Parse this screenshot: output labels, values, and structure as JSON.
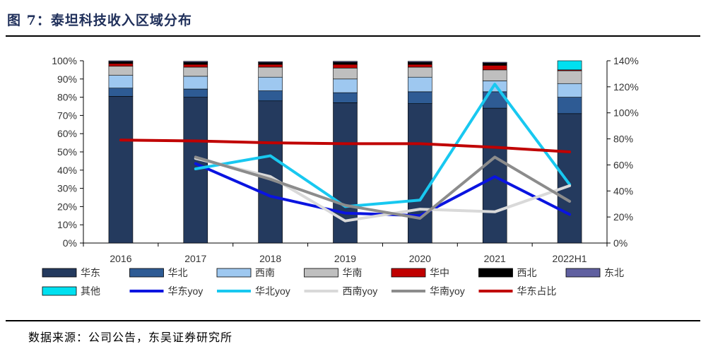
{
  "figure": {
    "title": "图 7：泰坦科技收入区域分布",
    "source": "数据来源：公司公告，东吴证券研究所"
  },
  "chart_data": {
    "type": "bar",
    "stacked": true,
    "categories": [
      "2016",
      "2017",
      "2018",
      "2019",
      "2020",
      "2021",
      "2022H1"
    ],
    "left_axis": {
      "ylim": [
        0,
        100
      ],
      "ticks": [
        "0%",
        "10%",
        "20%",
        "30%",
        "40%",
        "50%",
        "60%",
        "70%",
        "80%",
        "90%",
        "100%"
      ]
    },
    "right_axis": {
      "ylim": [
        0,
        140
      ],
      "ticks": [
        "0%",
        "20%",
        "40%",
        "60%",
        "80%",
        "100%",
        "120%",
        "140%"
      ]
    },
    "bar_series": [
      {
        "name": "华东",
        "color": "#243a5e",
        "values": [
          80.5,
          80.0,
          78.0,
          77.0,
          76.5,
          74.0,
          71.0
        ]
      },
      {
        "name": "华北",
        "color": "#2e5b94",
        "values": [
          4.5,
          4.5,
          5.5,
          5.5,
          6.5,
          9.0,
          9.0
        ]
      },
      {
        "name": "西南",
        "color": "#9ec8f0",
        "values": [
          7.0,
          7.0,
          7.5,
          7.5,
          8.0,
          6.0,
          7.5
        ]
      },
      {
        "name": "华南",
        "color": "#bfbfbf",
        "values": [
          5.0,
          5.0,
          5.5,
          6.0,
          5.5,
          6.0,
          7.0
        ]
      },
      {
        "name": "华中",
        "color": "#c00000",
        "values": [
          1.5,
          1.5,
          1.5,
          2.0,
          1.5,
          2.5,
          0.5
        ]
      },
      {
        "name": "西北",
        "color": "#000000",
        "values": [
          1.0,
          1.2,
          1.0,
          1.2,
          1.2,
          1.2,
          0.0
        ]
      },
      {
        "name": "东北",
        "color": "#6060a0",
        "values": [
          0.5,
          0.5,
          0.5,
          0.5,
          0.5,
          0.5,
          0.0
        ]
      },
      {
        "name": "其他",
        "color": "#00e0f0",
        "values": [
          0.0,
          0.0,
          0.0,
          0.0,
          0.0,
          0.0,
          5.0
        ]
      }
    ],
    "line_series": [
      {
        "name": "华东yoy",
        "axis": "right",
        "color": "#0a14e0",
        "values": [
          null,
          61,
          36,
          23,
          21,
          51,
          22
        ]
      },
      {
        "name": "华北yoy",
        "axis": "right",
        "color": "#18c8f0",
        "values": [
          null,
          57,
          67,
          28,
          33,
          122,
          45
        ]
      },
      {
        "name": "西南yoy",
        "axis": "right",
        "color": "#d9d9d9",
        "values": [
          null,
          65,
          51,
          17,
          26,
          24,
          44
        ]
      },
      {
        "name": "华南yoy",
        "axis": "right",
        "color": "#8c8c8c",
        "values": [
          null,
          66,
          49,
          29,
          19,
          66,
          32
        ]
      },
      {
        "name": "华东占比",
        "axis": "left",
        "color": "#c00000",
        "values": [
          56.5,
          56.0,
          55.0,
          54.5,
          54.5,
          52.5,
          50.0
        ]
      }
    ],
    "legend_placement": "bottom"
  }
}
